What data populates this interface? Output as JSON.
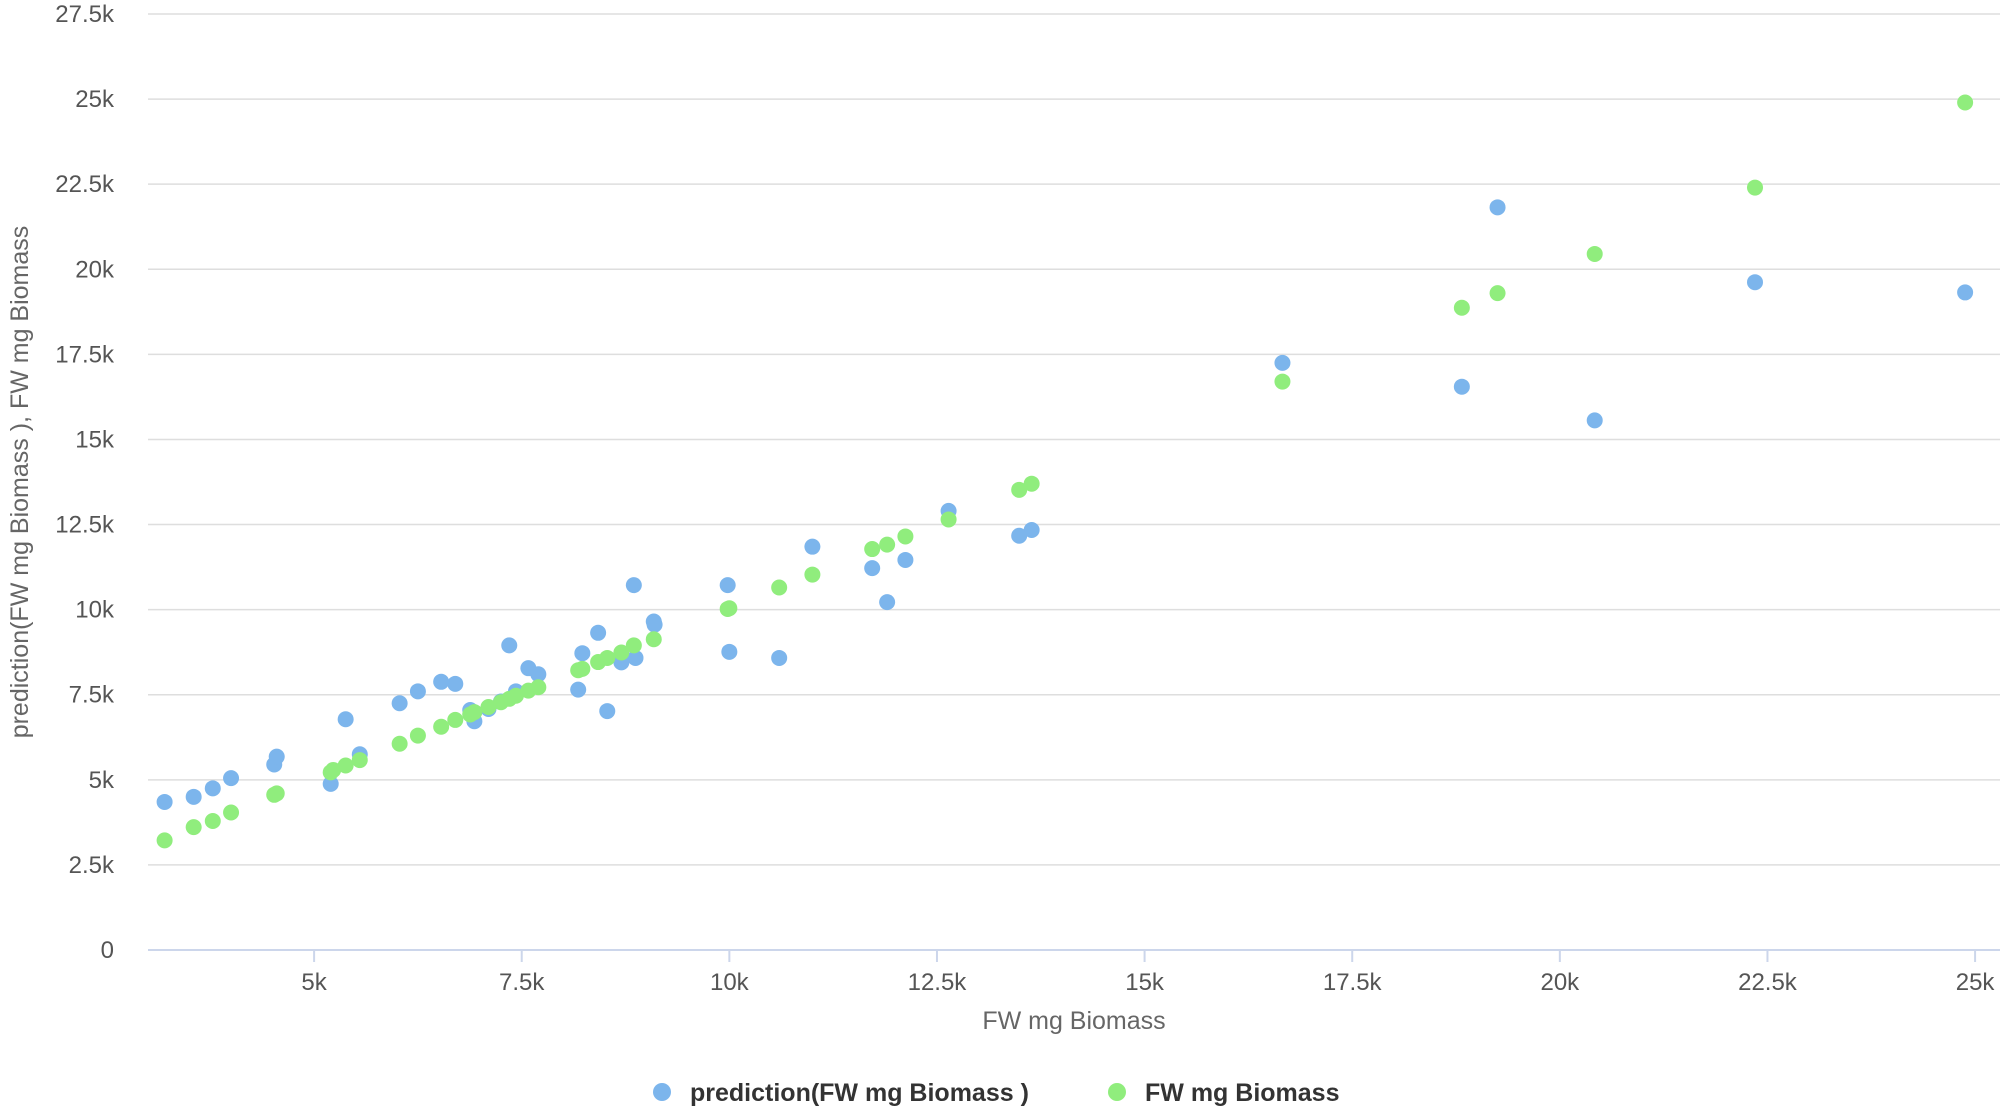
{
  "chart_data": {
    "type": "scatter",
    "title": "",
    "xlabel": "FW mg Biomass",
    "ylabel": "prediction(FW mg Biomass ), FW mg Biomass",
    "xlim": [
      3000,
      25300
    ],
    "ylim": [
      0,
      27500
    ],
    "x_ticks": [
      {
        "value": 5000,
        "label": "5k"
      },
      {
        "value": 7500,
        "label": "7.5k"
      },
      {
        "value": 10000,
        "label": "10k"
      },
      {
        "value": 12500,
        "label": "12.5k"
      },
      {
        "value": 15000,
        "label": "15k"
      },
      {
        "value": 17500,
        "label": "17.5k"
      },
      {
        "value": 20000,
        "label": "20k"
      },
      {
        "value": 22500,
        "label": "22.5k"
      },
      {
        "value": 25000,
        "label": "25k"
      }
    ],
    "y_ticks": [
      {
        "value": 0,
        "label": "0"
      },
      {
        "value": 2500,
        "label": "2.5k"
      },
      {
        "value": 5000,
        "label": "5k"
      },
      {
        "value": 7500,
        "label": "7.5k"
      },
      {
        "value": 10000,
        "label": "10k"
      },
      {
        "value": 12500,
        "label": "12.5k"
      },
      {
        "value": 15000,
        "label": "15k"
      },
      {
        "value": 17500,
        "label": "17.5k"
      },
      {
        "value": 20000,
        "label": "20k"
      },
      {
        "value": 22500,
        "label": "22.5k"
      },
      {
        "value": 25000,
        "label": "25k"
      },
      {
        "value": 27500,
        "label": "27.5k"
      }
    ],
    "grid": true,
    "legend_position": "bottom-center",
    "series": [
      {
        "name": "prediction(FW mg Biomass )",
        "color": "#7cb5ec",
        "points": [
          [
            3200,
            4350
          ],
          [
            3550,
            4500
          ],
          [
            3780,
            4750
          ],
          [
            4000,
            5050
          ],
          [
            4520,
            5450
          ],
          [
            4550,
            5680
          ],
          [
            5200,
            4880
          ],
          [
            5380,
            6780
          ],
          [
            5550,
            5750
          ],
          [
            6030,
            7250
          ],
          [
            6250,
            7600
          ],
          [
            6530,
            7880
          ],
          [
            6700,
            7820
          ],
          [
            6880,
            7050
          ],
          [
            6930,
            6720
          ],
          [
            7100,
            7080
          ],
          [
            7250,
            7300
          ],
          [
            7350,
            8950
          ],
          [
            7430,
            7600
          ],
          [
            7580,
            8280
          ],
          [
            7700,
            8100
          ],
          [
            8180,
            7650
          ],
          [
            8230,
            8720
          ],
          [
            8420,
            9320
          ],
          [
            8530,
            7020
          ],
          [
            8700,
            8450
          ],
          [
            8850,
            10720
          ],
          [
            8870,
            8580
          ],
          [
            9090,
            9650
          ],
          [
            9100,
            9560
          ],
          [
            9980,
            10720
          ],
          [
            10000,
            8760
          ],
          [
            10600,
            8580
          ],
          [
            11000,
            11850
          ],
          [
            11720,
            11220
          ],
          [
            11900,
            10220
          ],
          [
            12120,
            11460
          ],
          [
            12640,
            12900
          ],
          [
            13490,
            12170
          ],
          [
            13640,
            12340
          ],
          [
            16660,
            17250
          ],
          [
            18820,
            16550
          ],
          [
            19250,
            21820
          ],
          [
            20420,
            15560
          ],
          [
            22350,
            19620
          ],
          [
            24880,
            19320
          ]
        ]
      },
      {
        "name": "FW mg Biomass",
        "color": "#90ed7d",
        "points": [
          [
            3200,
            3220
          ],
          [
            3550,
            3610
          ],
          [
            3780,
            3790
          ],
          [
            4000,
            4040
          ],
          [
            4520,
            4560
          ],
          [
            4550,
            4600
          ],
          [
            5200,
            5220
          ],
          [
            5230,
            5290
          ],
          [
            5380,
            5420
          ],
          [
            5550,
            5580
          ],
          [
            6030,
            6060
          ],
          [
            6250,
            6300
          ],
          [
            6530,
            6560
          ],
          [
            6700,
            6760
          ],
          [
            6880,
            6920
          ],
          [
            6930,
            6990
          ],
          [
            7100,
            7140
          ],
          [
            7250,
            7280
          ],
          [
            7350,
            7380
          ],
          [
            7430,
            7470
          ],
          [
            7580,
            7620
          ],
          [
            7700,
            7720
          ],
          [
            8180,
            8220
          ],
          [
            8230,
            8260
          ],
          [
            8420,
            8460
          ],
          [
            8530,
            8580
          ],
          [
            8700,
            8740
          ],
          [
            8850,
            8950
          ],
          [
            9090,
            9130
          ],
          [
            9980,
            10020
          ],
          [
            10000,
            10040
          ],
          [
            10600,
            10650
          ],
          [
            11000,
            11030
          ],
          [
            11720,
            11780
          ],
          [
            11900,
            11910
          ],
          [
            12120,
            12150
          ],
          [
            12640,
            12650
          ],
          [
            13490,
            13520
          ],
          [
            13640,
            13700
          ],
          [
            16660,
            16700
          ],
          [
            18820,
            18870
          ],
          [
            19250,
            19300
          ],
          [
            20420,
            20450
          ],
          [
            22350,
            22400
          ],
          [
            24880,
            24900
          ]
        ]
      }
    ]
  }
}
